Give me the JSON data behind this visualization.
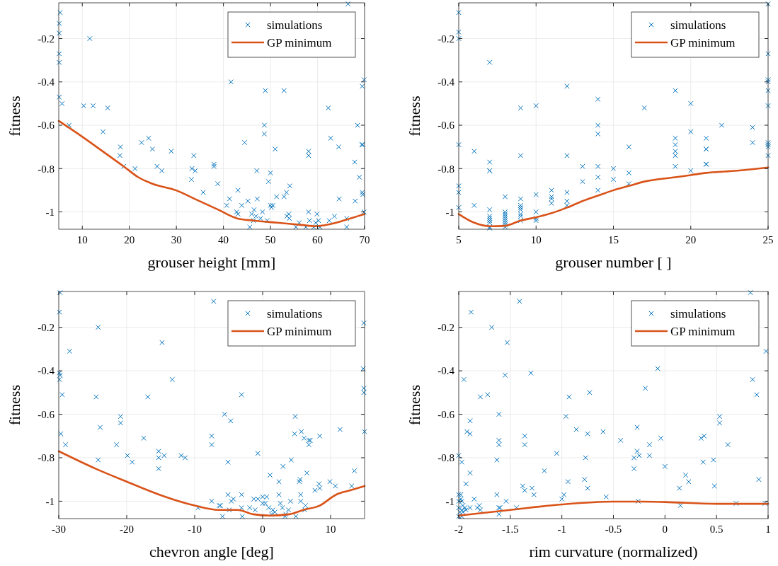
{
  "chart_data": [
    {
      "type": "scatter",
      "xlabel": "grouser height [mm]",
      "ylabel": "fitness",
      "xlim": [
        5,
        70
      ],
      "ylim": [
        -1.08,
        -0.035
      ],
      "xticks": [
        10,
        20,
        30,
        40,
        50,
        60,
        70
      ],
      "yticks": [
        -1,
        -0.8,
        -0.6,
        -0.4,
        -0.2
      ],
      "grid": true,
      "legend": "top right",
      "series": [
        {
          "name": "simulations",
          "type": "scatter",
          "color": "#0072bd",
          "marker": "cross",
          "x": [
            5.3,
            5.1,
            5.1,
            5.1,
            5.1,
            5.1,
            5.7,
            11.6,
            10.3,
            12.3,
            15.4,
            7.2,
            14.4,
            18.1,
            18.0,
            18.8,
            21.2,
            22.6,
            24.1,
            24.9,
            25.9,
            26.9,
            28.9,
            33.3,
            33.7,
            34.0,
            33.2,
            35.7,
            38.0,
            38.0,
            38.8,
            41.6,
            40.7,
            41.3,
            43.1,
            42.8,
            43.1,
            43.9,
            45.2,
            44.5,
            45.6,
            46.0,
            46.5,
            46.9,
            47.2,
            47.1,
            46.4,
            47.9,
            48.3,
            48.7,
            48.7,
            48.9,
            49.6,
            50.0,
            50.0,
            50.2,
            50.5,
            49.3,
            51.0,
            51.3,
            52.9,
            52.9,
            53.4,
            54.1,
            53.5,
            53.9,
            54.0,
            55.4,
            56.1,
            57.5,
            58.1,
            58.1,
            58.1,
            58.3,
            59.6,
            59.9,
            59.2,
            60.2,
            60.5,
            62.3,
            62.8,
            62.5,
            63.6,
            64.5,
            64.6,
            66.2,
            66.2,
            66.5,
            67.9,
            68.5,
            68.9,
            68.0,
            69.4,
            69.6,
            69.5,
            69.9,
            69.5,
            69.6,
            69.9
          ],
          "values": [
            -0.08,
            -0.13,
            -0.175,
            -0.27,
            -0.31,
            -0.47,
            -0.5,
            -0.2,
            -0.51,
            -0.51,
            -0.52,
            -0.6,
            -0.63,
            -0.7,
            -0.74,
            -0.79,
            -0.8,
            -0.68,
            -0.66,
            -0.71,
            -0.79,
            -0.81,
            -0.72,
            -0.8,
            -0.74,
            -0.81,
            -0.85,
            -0.91,
            -0.78,
            -0.79,
            -0.87,
            -0.4,
            -0.97,
            -0.94,
            -0.9,
            -1.0,
            -1.01,
            -0.97,
            -0.95,
            -0.68,
            -1.07,
            -1.01,
            -0.99,
            -1.02,
            -0.94,
            -0.81,
            -1.04,
            -1.03,
            -1.0,
            -0.6,
            -0.64,
            -0.44,
            -0.86,
            -0.82,
            -0.97,
            -0.98,
            -0.97,
            -1.04,
            -0.71,
            -0.93,
            -0.44,
            -0.93,
            -0.91,
            -0.88,
            -1.02,
            -1.01,
            -1.03,
            -1.07,
            -1.05,
            -1.07,
            -0.72,
            -0.74,
            -1.0,
            -1.04,
            -1.05,
            -1.01,
            -1.07,
            -1.04,
            -1.07,
            -0.52,
            -0.66,
            -1.04,
            -1.02,
            -0.7,
            -0.94,
            -1.03,
            -1.07,
            -0.04,
            -0.77,
            -0.6,
            -0.84,
            -0.95,
            -0.69,
            -0.69,
            -0.42,
            -0.39,
            -0.91,
            -0.92,
            -1.0
          ]
        },
        {
          "name": "GP minimum",
          "type": "line",
          "color": "#d95319",
          "x": [
            5,
            9.8,
            15.6,
            18.8,
            21.9,
            24.9,
            29.9,
            33.9,
            38.9,
            42.9,
            46.4,
            51.4,
            56.5,
            59.5,
            64,
            67,
            70
          ],
          "values": [
            -0.58,
            -0.65,
            -0.74,
            -0.79,
            -0.84,
            -0.87,
            -0.9,
            -0.94,
            -0.99,
            -1.03,
            -1.04,
            -1.05,
            -1.06,
            -1.066,
            -1.05,
            -1.03,
            -1.01
          ]
        }
      ]
    },
    {
      "type": "scatter",
      "xlabel": "grouser number [ ]",
      "ylabel": "fitness",
      "xlim": [
        5,
        25
      ],
      "ylim": [
        -1.08,
        -0.035
      ],
      "xticks": [
        5,
        10,
        15,
        20,
        25
      ],
      "yticks": [
        -1,
        -0.8,
        -0.6,
        -0.4,
        -0.2
      ],
      "grid": true,
      "legend": "top right",
      "series": [
        {
          "name": "simulations",
          "type": "scatter",
          "color": "#0072bd",
          "marker": "cross",
          "x": [
            5,
            5,
            5,
            5,
            5,
            5,
            5,
            6,
            6,
            7,
            7,
            7,
            7,
            7,
            7,
            7,
            7,
            7,
            7,
            7,
            8,
            8,
            8,
            8,
            8,
            8,
            8,
            8,
            8,
            9,
            9,
            9,
            9,
            9,
            9,
            9,
            9,
            9,
            10,
            10,
            10,
            10,
            10,
            11,
            11,
            11,
            11,
            12,
            12,
            12,
            12,
            12,
            13,
            13,
            14,
            14,
            14,
            14,
            14,
            14,
            15,
            15,
            16,
            16,
            16,
            17,
            19,
            19,
            19,
            19,
            19,
            19,
            20,
            20,
            20,
            21,
            21,
            21,
            21,
            21,
            22,
            24,
            24,
            25,
            25,
            25,
            25,
            25,
            25,
            25,
            25,
            25,
            25
          ],
          "values": [
            -0.08,
            -0.17,
            -0.2,
            -0.69,
            -0.88,
            -0.91,
            -0.98,
            -0.72,
            -0.97,
            -0.31,
            -0.77,
            -0.81,
            -0.81,
            -0.99,
            -1.02,
            -1.03,
            -1.04,
            -1.05,
            -1.07,
            -1.075,
            -0.93,
            -1.0,
            -1.01,
            -1.02,
            -1.03,
            -1.04,
            -1.05,
            -1.06,
            -1.07,
            -0.52,
            -0.74,
            -0.94,
            -0.97,
            -0.98,
            -0.99,
            -1.01,
            -1.02,
            -1.04,
            -0.51,
            -0.92,
            -1.0,
            -1.03,
            -1.04,
            -0.9,
            -0.93,
            -0.94,
            -0.96,
            -0.42,
            -0.74,
            -0.91,
            -0.95,
            -0.97,
            -0.79,
            -0.86,
            -0.48,
            -0.6,
            -0.64,
            -0.79,
            -0.84,
            -0.9,
            -0.8,
            -0.85,
            -0.7,
            -0.82,
            -0.87,
            -0.52,
            -0.44,
            -0.66,
            -0.69,
            -0.72,
            -0.74,
            -0.79,
            -0.5,
            -0.63,
            -0.81,
            -0.66,
            -0.71,
            -0.71,
            -0.78,
            -0.78,
            -0.6,
            -0.61,
            -0.68,
            -0.04,
            -0.27,
            -0.39,
            -0.4,
            -0.44,
            -0.51,
            -0.68,
            -0.69,
            -0.7,
            -0.74
          ]
        },
        {
          "name": "GP minimum",
          "type": "line",
          "color": "#d95319",
          "x": [
            5,
            6,
            7,
            8,
            9,
            10,
            11,
            12,
            13,
            14,
            15,
            16,
            17,
            19,
            20,
            21,
            23,
            25
          ],
          "values": [
            -1.01,
            -1.05,
            -1.066,
            -1.064,
            -1.04,
            -1.025,
            -1.006,
            -0.98,
            -0.95,
            -0.925,
            -0.9,
            -0.88,
            -0.86,
            -0.84,
            -0.83,
            -0.82,
            -0.81,
            -0.795
          ]
        }
      ]
    },
    {
      "type": "scatter",
      "xlabel": "chevron angle [deg]",
      "ylabel": "fitness",
      "xlim": [
        -30,
        15
      ],
      "ylim": [
        -1.08,
        -0.035
      ],
      "xticks": [
        -30,
        -20,
        -10,
        0,
        10
      ],
      "yticks": [
        -1,
        -0.8,
        -0.6,
        -0.4,
        -0.2
      ],
      "grid": true,
      "legend": "top right",
      "series": [
        {
          "name": "simulations",
          "type": "scatter",
          "color": "#0072bd",
          "marker": "cross",
          "x": [
            -29.8,
            -29.9,
            -24.2,
            -28.4,
            -14.8,
            -7.2,
            14.9,
            -29.9,
            -29.8,
            -29.9,
            -29.5,
            -24.5,
            -16.9,
            -13.3,
            -3.1,
            14.8,
            14.9,
            14.9,
            15,
            -20.9,
            -20.9,
            -23.9,
            -29.7,
            -29,
            -21.5,
            -24.2,
            -17.5,
            -15.3,
            -15.3,
            -14.5,
            -15.3,
            -19.9,
            -19.2,
            -12,
            -11.4,
            -5.6,
            -4.7,
            -7.5,
            -7.5,
            -5.1,
            -0.7,
            4.8,
            4.7,
            5.7,
            6.1,
            6.8,
            7,
            6.8,
            8.4,
            11.4,
            4.2,
            3,
            6.5,
            1.1,
            2.4,
            5.4,
            5.5,
            8.3,
            9.9,
            10.7,
            7.7,
            8.4,
            13.1,
            13.5,
            -5.1,
            -3.1,
            2.4,
            5.6,
            -7.5,
            -6.2,
            -6.4,
            -4.6,
            -4.3,
            -4.9,
            -3.1,
            -1.9,
            -1.3,
            -0.7,
            0,
            0.6,
            0,
            0.4,
            -1.1,
            0.9,
            1.5,
            1.8,
            1.3,
            2.6,
            2.9,
            4.1,
            3.8,
            3.4,
            4.9,
            5.6,
            6.3,
            6.2,
            -9.5,
            -5.9,
            -3,
            3.3
          ],
          "values": [
            -0.04,
            -0.13,
            -0.2,
            -0.31,
            -0.27,
            -0.08,
            -0.18,
            -0.41,
            -0.42,
            -0.44,
            -0.51,
            -0.52,
            -0.52,
            -0.44,
            -0.51,
            -0.39,
            -0.48,
            -0.5,
            -0.68,
            -0.61,
            -0.64,
            -0.66,
            -0.69,
            -0.74,
            -0.74,
            -0.81,
            -0.71,
            -0.77,
            -0.8,
            -0.79,
            -0.85,
            -0.79,
            -0.82,
            -0.79,
            -0.8,
            -0.6,
            -0.63,
            -0.7,
            -0.74,
            -0.82,
            -0.78,
            -0.61,
            -0.69,
            -0.68,
            -0.71,
            -0.72,
            -0.72,
            -0.74,
            -0.7,
            -0.67,
            -0.81,
            -0.84,
            -0.87,
            -0.88,
            -0.91,
            -0.91,
            -0.9,
            -0.92,
            -0.91,
            -0.93,
            -0.95,
            -0.94,
            -0.93,
            -0.86,
            -0.97,
            -0.97,
            -0.97,
            -0.97,
            -1.0,
            -1.02,
            -1.02,
            -1.0,
            -0.99,
            -1.04,
            -1.03,
            -1.03,
            -0.99,
            -0.99,
            -0.98,
            -0.98,
            -1.01,
            -1.01,
            -1.04,
            -1.03,
            -1.04,
            -1.05,
            -1.06,
            -1.01,
            -1.03,
            -1.0,
            -1.04,
            -1.06,
            -1.07,
            -1.0,
            -1.02,
            -1.04,
            -1.03,
            -1.07,
            -1.07,
            -1.07
          ]
        },
        {
          "name": "GP minimum",
          "type": "line",
          "color": "#d95319",
          "x": [
            -30,
            -24.6,
            -20,
            -15.2,
            -10,
            -6.5,
            -3.7,
            -1.4,
            1.1,
            3.9,
            6,
            8.4,
            10.8,
            12.9,
            15
          ],
          "values": [
            -0.77,
            -0.85,
            -0.91,
            -0.97,
            -1.02,
            -1.04,
            -1.04,
            -1.06,
            -1.066,
            -1.06,
            -1.04,
            -1.02,
            -0.97,
            -0.95,
            -0.93
          ]
        }
      ]
    },
    {
      "type": "scatter",
      "xlabel": "rim curvature (normalized)",
      "ylabel": "fitness",
      "xlim": [
        -2,
        1
      ],
      "ylim": [
        -1.08,
        -0.035
      ],
      "xticks": [
        -2,
        -1.5,
        -1,
        -0.5,
        0,
        0.5,
        1
      ],
      "yticks": [
        -1,
        -0.8,
        -0.6,
        -0.4,
        -0.2
      ],
      "grid": true,
      "legend": "top right",
      "series": [
        {
          "name": "simulations",
          "type": "scatter",
          "color": "#0072bd",
          "marker": "cross",
          "x": [
            -1.88,
            -1.68,
            -1.53,
            -1.41,
            0.83,
            0.98,
            -1.95,
            -1.79,
            -1.72,
            -1.55,
            -1.3,
            -0.07,
            -0.19,
            -0.93,
            -0.73,
            0.85,
            0.89,
            -1.61,
            -1.89,
            -1.92,
            -1.89,
            -1.61,
            -1.61,
            -1.63,
            -1.36,
            -1.36,
            -0.96,
            -0.86,
            -0.75,
            -0.6,
            -0.43,
            -0.27,
            -0.15,
            -0.04,
            0.35,
            0.38,
            0.53,
            0.53,
            0.61,
            -2,
            -1.97,
            -1.89,
            -1.93,
            -1.05,
            -1.17,
            -0.77,
            -0.3,
            -0.27,
            -0.25,
            -0.3,
            -0.15,
            0,
            0.37,
            0.47,
            -0.78,
            -0.75,
            -0.94,
            -0.98,
            -1,
            -1.38,
            -1.36,
            -1.29,
            -1.27,
            -0.57,
            0.14,
            0.2,
            0.23,
            0.48,
            0.91,
            -1.63,
            -1.54,
            -1.61,
            -1.6,
            -1.61,
            -1.44,
            -1.85,
            -1.8,
            -1.82,
            -1.79,
            -1.89,
            -0.26,
            0.15,
            0.69,
            0.97,
            -2,
            -1.98,
            -1.98,
            -2,
            -1.97,
            -1.96,
            -2,
            -1.97,
            -1.94,
            -1.99,
            -1.96,
            -2,
            -1.97,
            -1.93
          ],
          "values": [
            -0.13,
            -0.2,
            -0.27,
            -0.08,
            -0.04,
            -0.31,
            -0.44,
            -0.52,
            -0.51,
            -0.42,
            -0.41,
            -0.39,
            -0.48,
            -0.52,
            -0.5,
            -0.44,
            -0.51,
            -0.6,
            -0.63,
            -0.68,
            -0.69,
            -0.72,
            -0.74,
            -0.81,
            -0.7,
            -0.74,
            -0.61,
            -0.67,
            -0.69,
            -0.68,
            -0.72,
            -0.66,
            -0.74,
            -0.71,
            -0.71,
            -0.7,
            -0.61,
            -0.64,
            -0.74,
            -0.79,
            -0.82,
            -0.87,
            -0.92,
            -0.78,
            -0.86,
            -0.8,
            -0.8,
            -0.77,
            -0.79,
            -0.85,
            -0.79,
            -0.84,
            -0.82,
            -0.81,
            -0.9,
            -0.94,
            -0.91,
            -0.97,
            -0.99,
            -0.93,
            -0.95,
            -0.94,
            -0.97,
            -0.98,
            -0.94,
            -0.88,
            -0.91,
            -0.93,
            -0.9,
            -0.97,
            -1.0,
            -1.03,
            -1.03,
            -1.06,
            -1.03,
            -0.99,
            -1.02,
            -1.03,
            -1.04,
            -1.03,
            -1.0,
            -1.02,
            -1.01,
            -1.01,
            -0.97,
            -0.97,
            -0.99,
            -1.0,
            -1.0,
            -1.02,
            -1.03,
            -1.04,
            -1.03,
            -1.05,
            -1.05,
            -1.07,
            -1.07,
            -1.04
          ]
        },
        {
          "name": "GP minimum",
          "type": "line",
          "color": "#d95319",
          "x": [
            -2,
            -1.5,
            -1,
            -0.5,
            -0.23,
            0,
            0.5,
            1
          ],
          "values": [
            -1.066,
            -1.04,
            -1.015,
            -1.002,
            -1.002,
            -1.004,
            -1.012,
            -1.012
          ]
        }
      ]
    }
  ]
}
